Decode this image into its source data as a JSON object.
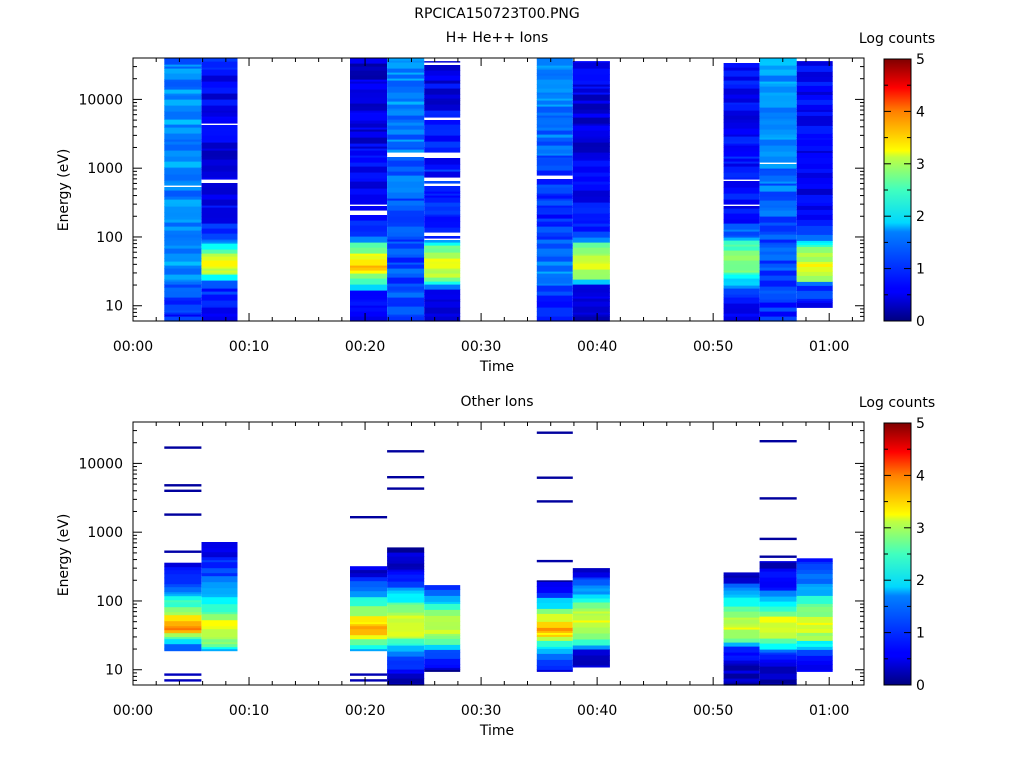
{
  "figure": {
    "title": "RPCICA150723T00.PNG"
  },
  "colorbar": {
    "label": "Log counts",
    "ticks": [
      "0",
      "1",
      "2",
      "3",
      "4",
      "5"
    ],
    "range": [
      0,
      5
    ],
    "colormap": "jet"
  },
  "chart_data": [
    {
      "type": "heatmap",
      "title": "H+ He++ Ions",
      "xlabel": "Time",
      "ylabel": "Energy (eV)",
      "x_ticks": [
        "00:00",
        "00:10",
        "00:20",
        "00:30",
        "00:40",
        "00:50",
        "01:00"
      ],
      "y_ticks": [
        "10",
        "100",
        "1000",
        "10000"
      ],
      "xlim_minutes": [
        0,
        63
      ],
      "ylim_ev": [
        6,
        40000
      ],
      "y_scale": "log",
      "columns": [
        {
          "start_min": 2.7,
          "end_min": 5.9,
          "emin_ev": 6,
          "emax_ev": 40000,
          "profile": [
            [
              6,
              0.7
            ],
            [
              10,
              0.9
            ],
            [
              20,
              1.1
            ],
            [
              30,
              1.3
            ],
            [
              40,
              1.4
            ],
            [
              60,
              1.3
            ],
            [
              100,
              1.2
            ],
            [
              1000,
              1.35
            ],
            [
              10000,
              1.35
            ],
            [
              40000,
              1.2
            ]
          ]
        },
        {
          "start_min": 5.9,
          "end_min": 9.0,
          "emin_ev": 6,
          "emax_ev": 40000,
          "profile": [
            [
              6,
              0.6
            ],
            [
              20,
              0.8
            ],
            [
              25,
              1.6
            ],
            [
              30,
              2.9
            ],
            [
              45,
              3.0
            ],
            [
              60,
              2.6
            ],
            [
              80,
              1.7
            ],
            [
              100,
              1.0
            ],
            [
              200,
              0.6
            ],
            [
              1000,
              0.5
            ],
            [
              10000,
              0.55
            ],
            [
              40000,
              0.7
            ]
          ]
        },
        {
          "start_min": 18.7,
          "end_min": 21.9,
          "emin_ev": 6,
          "emax_ev": 40000,
          "profile": [
            [
              6,
              0.4
            ],
            [
              15,
              0.6
            ],
            [
              20,
              1.8
            ],
            [
              30,
              3.0
            ],
            [
              40,
              3.4
            ],
            [
              55,
              3.0
            ],
            [
              80,
              2.2
            ],
            [
              100,
              1.0
            ],
            [
              200,
              0.6
            ],
            [
              40000,
              0.4
            ]
          ]
        },
        {
          "start_min": 21.9,
          "end_min": 25.1,
          "emin_ev": 6,
          "emax_ev": 40000,
          "profile": [
            [
              6,
              1.1
            ],
            [
              20,
              1.0
            ],
            [
              100,
              0.9
            ],
            [
              1000,
              1.15
            ],
            [
              10000,
              1.3
            ],
            [
              40000,
              1.3
            ]
          ]
        },
        {
          "start_min": 25.1,
          "end_min": 28.2,
          "emin_ev": 6,
          "emax_ev": 36000,
          "profile": [
            [
              6,
              0.45
            ],
            [
              15,
              0.6
            ],
            [
              20,
              1.2
            ],
            [
              25,
              2.6
            ],
            [
              40,
              3.0
            ],
            [
              60,
              2.8
            ],
            [
              80,
              2.0
            ],
            [
              100,
              0.9
            ],
            [
              40000,
              0.45
            ]
          ]
        },
        {
          "start_min": 34.8,
          "end_min": 37.9,
          "emin_ev": 6,
          "emax_ev": 40000,
          "profile": [
            [
              6,
              0.6
            ],
            [
              10,
              0.7
            ],
            [
              20,
              1.0
            ],
            [
              30,
              1.4
            ],
            [
              100,
              1.0
            ],
            [
              200,
              0.8
            ],
            [
              1000,
              1.0
            ],
            [
              10000,
              1.3
            ],
            [
              40000,
              1.4
            ]
          ]
        },
        {
          "start_min": 37.9,
          "end_min": 41.1,
          "emin_ev": 6,
          "emax_ev": 36000,
          "profile": [
            [
              6,
              0.4
            ],
            [
              20,
              0.7
            ],
            [
              25,
              2.4
            ],
            [
              35,
              3.1
            ],
            [
              55,
              2.9
            ],
            [
              80,
              2.2
            ],
            [
              100,
              1.0
            ],
            [
              300,
              0.55
            ],
            [
              40000,
              0.45
            ]
          ]
        },
        {
          "start_min": 50.9,
          "end_min": 54.0,
          "emin_ev": 6,
          "emax_ev": 40000,
          "profile": [
            [
              6,
              0.5
            ],
            [
              15,
              0.8
            ],
            [
              25,
              1.8
            ],
            [
              35,
              2.6
            ],
            [
              45,
              2.7
            ],
            [
              60,
              2.5
            ],
            [
              80,
              2.2
            ],
            [
              100,
              1.2
            ],
            [
              200,
              0.7
            ],
            [
              40000,
              0.6
            ]
          ]
        },
        {
          "start_min": 54.0,
          "end_min": 57.2,
          "emin_ev": 6,
          "emax_ev": 40000,
          "profile": [
            [
              6,
              0.8
            ],
            [
              20,
              0.9
            ],
            [
              100,
              1.0
            ],
            [
              1000,
              1.2
            ],
            [
              10000,
              1.35
            ],
            [
              40000,
              1.4
            ]
          ]
        },
        {
          "start_min": 57.2,
          "end_min": 60.3,
          "emin_ev": 9.5,
          "emax_ev": 36000,
          "profile": [
            [
              9.5,
              0.6
            ],
            [
              20,
              1.0
            ],
            [
              25,
              2.4
            ],
            [
              35,
              3.0
            ],
            [
              55,
              2.8
            ],
            [
              80,
              2.0
            ],
            [
              100,
              0.9
            ],
            [
              200,
              0.6
            ],
            [
              40000,
              0.6
            ]
          ]
        }
      ]
    },
    {
      "type": "heatmap",
      "title": "Other Ions",
      "xlabel": "Time",
      "ylabel": "Energy (eV)",
      "x_ticks": [
        "00:00",
        "00:10",
        "00:20",
        "00:30",
        "00:40",
        "00:50",
        "01:00"
      ],
      "y_ticks": [
        "10",
        "100",
        "1000",
        "10000"
      ],
      "xlim_minutes": [
        0,
        63
      ],
      "ylim_ev": [
        6,
        40000
      ],
      "y_scale": "log",
      "columns": [
        {
          "start_min": 2.7,
          "end_min": 5.9,
          "emin_ev": 19,
          "emax_ev": 360,
          "profile": [
            [
              19,
              0.9
            ],
            [
              25,
              1.6
            ],
            [
              30,
              2.6
            ],
            [
              40,
              3.6
            ],
            [
              55,
              3.1
            ],
            [
              80,
              2.4
            ],
            [
              150,
              1.3
            ],
            [
              360,
              0.5
            ]
          ],
          "isolated": [
            [
              7,
              0.3
            ],
            [
              8.5,
              0.3
            ],
            [
              520,
              0.2
            ],
            [
              1800,
              0.15
            ],
            [
              4000,
              0.15
            ],
            [
              4800,
              0.15
            ],
            [
              17000,
              0.15
            ]
          ]
        },
        {
          "start_min": 5.9,
          "end_min": 9.0,
          "emin_ev": 19,
          "emax_ev": 720,
          "profile": [
            [
              19,
              1.6
            ],
            [
              25,
              2.4
            ],
            [
              30,
              2.9
            ],
            [
              45,
              3.1
            ],
            [
              60,
              2.7
            ],
            [
              100,
              1.8
            ],
            [
              200,
              1.2
            ],
            [
              400,
              0.7
            ],
            [
              720,
              0.35
            ]
          ]
        },
        {
          "start_min": 18.7,
          "end_min": 21.9,
          "emin_ev": 19,
          "emax_ev": 320,
          "profile": [
            [
              19,
              1.4
            ],
            [
              25,
              2.2
            ],
            [
              30,
              3.0
            ],
            [
              40,
              3.7
            ],
            [
              55,
              3.2
            ],
            [
              80,
              2.4
            ],
            [
              150,
              1.2
            ],
            [
              320,
              0.3
            ]
          ],
          "isolated": [
            [
              7,
              0.25
            ],
            [
              8.5,
              0.25
            ],
            [
              1650,
              0.15
            ]
          ]
        },
        {
          "start_min": 21.9,
          "end_min": 25.1,
          "emin_ev": 6,
          "emax_ev": 600,
          "profile": [
            [
              6,
              0.2
            ],
            [
              15,
              0.9
            ],
            [
              25,
              2.0
            ],
            [
              35,
              3.2
            ],
            [
              55,
              3.0
            ],
            [
              80,
              2.4
            ],
            [
              150,
              1.3
            ],
            [
              300,
              0.5
            ],
            [
              600,
              0.25
            ]
          ],
          "isolated": [
            [
              4300,
              0.15
            ],
            [
              6300,
              0.15
            ],
            [
              15000,
              0.15
            ]
          ]
        },
        {
          "start_min": 25.1,
          "end_min": 28.2,
          "emin_ev": 9.5,
          "emax_ev": 170,
          "profile": [
            [
              9.5,
              0.2
            ],
            [
              20,
              1.2
            ],
            [
              30,
              2.7
            ],
            [
              45,
              3.0
            ],
            [
              70,
              2.3
            ],
            [
              110,
              1.3
            ],
            [
              170,
              0.5
            ]
          ]
        },
        {
          "start_min": 34.8,
          "end_min": 37.9,
          "emin_ev": 9.5,
          "emax_ev": 200,
          "profile": [
            [
              9.5,
              0.4
            ],
            [
              20,
              1.5
            ],
            [
              30,
              3.2
            ],
            [
              40,
              3.6
            ],
            [
              55,
              3.0
            ],
            [
              80,
              2.2
            ],
            [
              120,
              1.0
            ],
            [
              200,
              0.3
            ]
          ],
          "isolated": [
            [
              380,
              0.2
            ],
            [
              2800,
              0.15
            ],
            [
              6200,
              0.15
            ],
            [
              28000,
              0.15
            ]
          ]
        },
        {
          "start_min": 37.9,
          "end_min": 41.1,
          "emin_ev": 11,
          "emax_ev": 300,
          "profile": [
            [
              11,
              0.3
            ],
            [
              19,
              0.5
            ],
            [
              22,
              1.3
            ],
            [
              30,
              2.6
            ],
            [
              50,
              3.0
            ],
            [
              80,
              2.6
            ],
            [
              140,
              1.4
            ],
            [
              220,
              0.8
            ],
            [
              300,
              0.4
            ]
          ]
        },
        {
          "start_min": 50.9,
          "end_min": 54.0,
          "emin_ev": 6,
          "emax_ev": 260,
          "profile": [
            [
              6,
              0.2
            ],
            [
              12,
              0.3
            ],
            [
              20,
              1.0
            ],
            [
              30,
              2.6
            ],
            [
              45,
              3.0
            ],
            [
              70,
              2.6
            ],
            [
              110,
              1.6
            ],
            [
              200,
              0.6
            ],
            [
              260,
              0.3
            ]
          ]
        },
        {
          "start_min": 54.0,
          "end_min": 57.2,
          "emin_ev": 6,
          "emax_ev": 380,
          "profile": [
            [
              6,
              0.3
            ],
            [
              15,
              0.5
            ],
            [
              25,
              2.0
            ],
            [
              35,
              3.1
            ],
            [
              55,
              2.9
            ],
            [
              80,
              2.1
            ],
            [
              150,
              0.9
            ],
            [
              380,
              0.3
            ]
          ],
          "isolated": [
            [
              440,
              0.15
            ],
            [
              800,
              0.15
            ],
            [
              3100,
              0.15
            ],
            [
              21000,
              0.15
            ]
          ]
        },
        {
          "start_min": 57.2,
          "end_min": 60.3,
          "emin_ev": 9.5,
          "emax_ev": 420,
          "profile": [
            [
              9.5,
              0.4
            ],
            [
              20,
              1.2
            ],
            [
              30,
              2.6
            ],
            [
              45,
              3.0
            ],
            [
              70,
              2.6
            ],
            [
              110,
              1.9
            ],
            [
              200,
              1.3
            ],
            [
              420,
              0.7
            ]
          ]
        }
      ]
    }
  ]
}
